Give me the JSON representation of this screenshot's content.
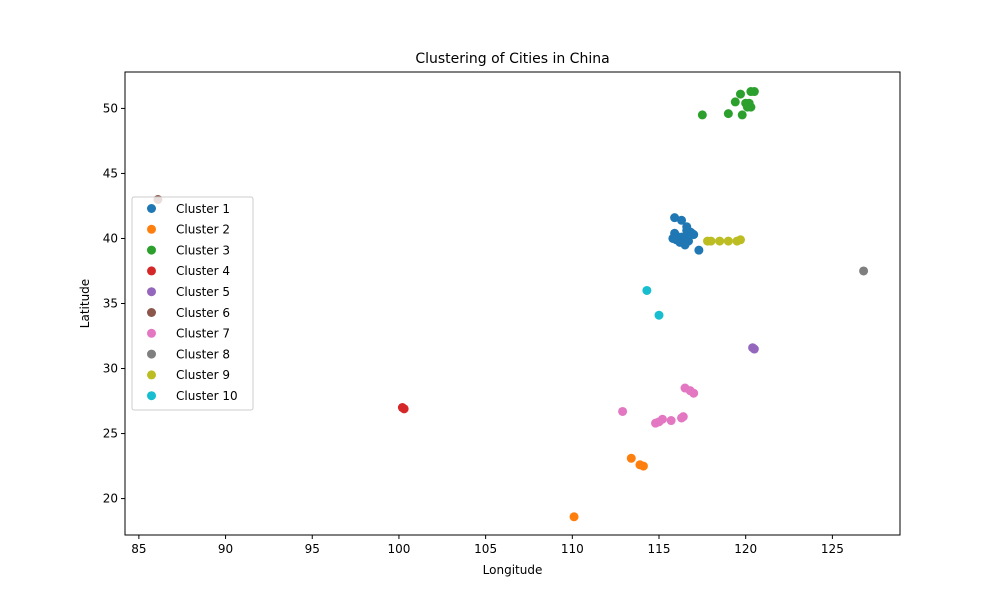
{
  "chart_data": {
    "type": "scatter",
    "title": "Clustering of Cities in China",
    "xlabel": "Longitude",
    "ylabel": "Latitude",
    "xlim": [
      84.2,
      128.9
    ],
    "ylim": [
      17.2,
      52.8
    ],
    "xticks": [
      85,
      90,
      95,
      100,
      105,
      110,
      115,
      120,
      125
    ],
    "yticks": [
      20,
      25,
      30,
      35,
      40,
      45,
      50
    ],
    "grid": false,
    "legend_position": "center-left",
    "series": [
      {
        "name": "Cluster 1",
        "color": "#1f77b4",
        "points": [
          [
            115.9,
            41.6
          ],
          [
            116.3,
            41.4
          ],
          [
            116.6,
            40.9
          ],
          [
            115.9,
            40.4
          ],
          [
            116.0,
            40.2
          ],
          [
            116.3,
            40.1
          ],
          [
            116.4,
            39.9
          ],
          [
            116.5,
            40.0
          ],
          [
            116.7,
            39.8
          ],
          [
            116.8,
            40.5
          ],
          [
            117.0,
            40.3
          ],
          [
            116.2,
            39.7
          ],
          [
            116.5,
            39.5
          ],
          [
            116.0,
            39.9
          ],
          [
            115.8,
            40.0
          ],
          [
            116.6,
            40.6
          ],
          [
            116.9,
            40.4
          ],
          [
            117.3,
            39.1
          ]
        ]
      },
      {
        "name": "Cluster 2",
        "color": "#ff7f0e",
        "points": [
          [
            113.4,
            23.1
          ],
          [
            113.9,
            22.6
          ],
          [
            114.1,
            22.5
          ],
          [
            110.1,
            18.6
          ]
        ]
      },
      {
        "name": "Cluster 3",
        "color": "#2ca02c",
        "points": [
          [
            120.3,
            51.3
          ],
          [
            120.5,
            51.3
          ],
          [
            119.7,
            51.1
          ],
          [
            119.4,
            50.5
          ],
          [
            120.0,
            50.4
          ],
          [
            120.2,
            50.4
          ],
          [
            120.1,
            50.1
          ],
          [
            120.3,
            50.1
          ],
          [
            119.0,
            49.6
          ],
          [
            119.8,
            49.5
          ],
          [
            117.5,
            49.5
          ]
        ]
      },
      {
        "name": "Cluster 4",
        "color": "#d62728",
        "points": [
          [
            100.2,
            27.0
          ],
          [
            100.3,
            26.9
          ]
        ]
      },
      {
        "name": "Cluster 5",
        "color": "#9467bd",
        "points": [
          [
            120.4,
            31.6
          ],
          [
            120.5,
            31.5
          ]
        ]
      },
      {
        "name": "Cluster 6",
        "color": "#8c564b",
        "points": [
          [
            86.1,
            43.0
          ]
        ]
      },
      {
        "name": "Cluster 7",
        "color": "#e377c2",
        "points": [
          [
            116.5,
            28.5
          ],
          [
            116.8,
            28.3
          ],
          [
            117.0,
            28.1
          ],
          [
            116.4,
            26.3
          ],
          [
            116.3,
            26.2
          ],
          [
            115.7,
            26.0
          ],
          [
            115.2,
            26.1
          ],
          [
            115.0,
            25.9
          ],
          [
            114.8,
            25.8
          ],
          [
            112.9,
            26.7
          ]
        ]
      },
      {
        "name": "Cluster 8",
        "color": "#7f7f7f",
        "points": [
          [
            126.8,
            37.5
          ]
        ]
      },
      {
        "name": "Cluster 9",
        "color": "#bcbd22",
        "points": [
          [
            117.8,
            39.8
          ],
          [
            118.0,
            39.8
          ],
          [
            118.5,
            39.8
          ],
          [
            119.0,
            39.8
          ],
          [
            119.5,
            39.8
          ],
          [
            119.7,
            39.9
          ]
        ]
      },
      {
        "name": "Cluster 10",
        "color": "#17becf",
        "points": [
          [
            114.3,
            36.0
          ],
          [
            115.0,
            34.1
          ]
        ]
      }
    ]
  }
}
